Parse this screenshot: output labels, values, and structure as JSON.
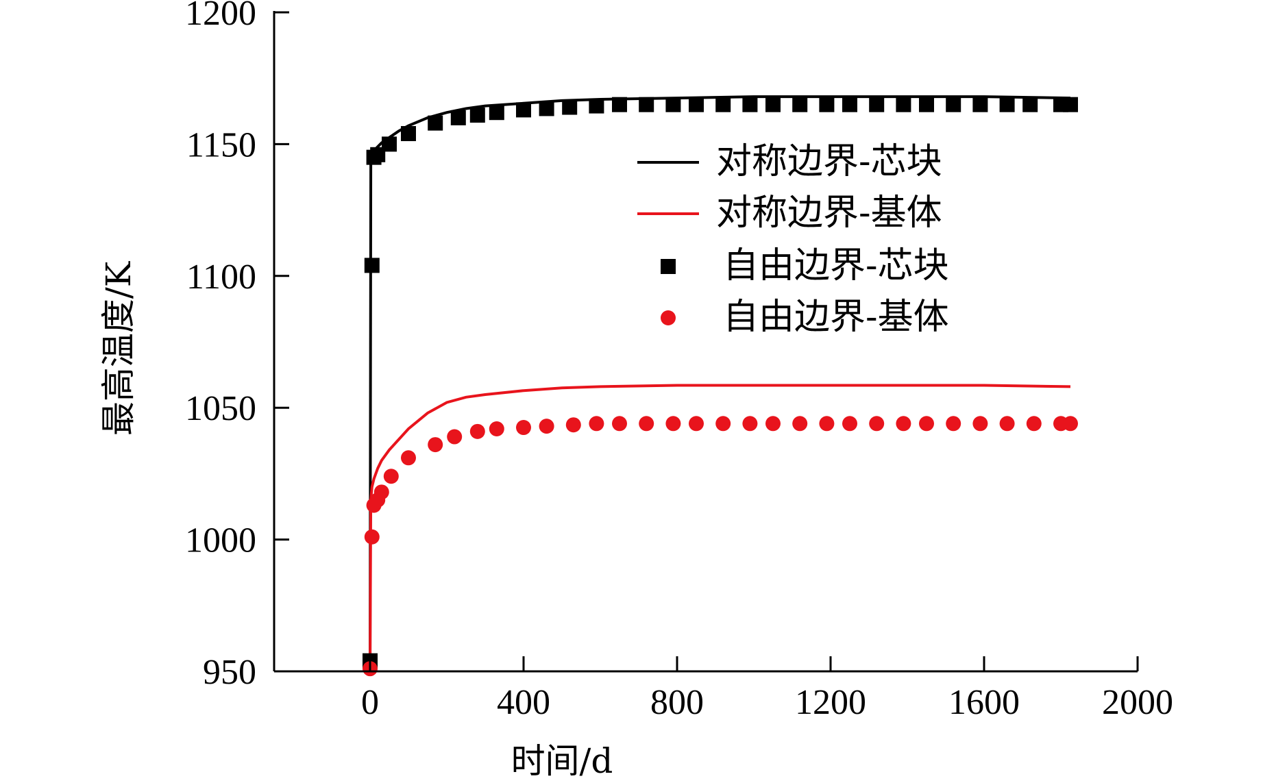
{
  "chart_data": {
    "type": "line",
    "title": "",
    "xlabel": "时间/d",
    "ylabel": "最高温度/K",
    "xlim": [
      -250,
      2000
    ],
    "ylim": [
      950,
      1200
    ],
    "xticks": [
      0,
      400,
      800,
      1200,
      1600,
      2000
    ],
    "yticks": [
      950,
      1000,
      1050,
      1100,
      1150,
      1200
    ],
    "xtick_labels": [
      "0",
      "400",
      "800",
      "1200",
      "1600",
      "2000"
    ],
    "ytick_labels": [
      "950",
      "1000",
      "1050",
      "1100",
      "1150",
      "1200"
    ],
    "grid": false,
    "legend_position": "right, upper-middle",
    "colors": {
      "black": "#000000",
      "red": "#e8141c"
    },
    "series": [
      {
        "name": "对称边界-芯块",
        "style": "line",
        "color": "#000000",
        "x": [
          0,
          2,
          5,
          10,
          20,
          30,
          50,
          75,
          100,
          150,
          200,
          250,
          300,
          400,
          500,
          600,
          800,
          1000,
          1200,
          1400,
          1600,
          1825
        ],
        "y": [
          950,
          1143,
          1146,
          1147.5,
          1149,
          1150.5,
          1152.5,
          1155,
          1157,
          1160,
          1162,
          1163.5,
          1164.5,
          1165.5,
          1166.5,
          1167,
          1167.5,
          1168,
          1168,
          1168,
          1168,
          1167.5
        ]
      },
      {
        "name": "对称边界-基体",
        "style": "line",
        "color": "#e8141c",
        "x": [
          0,
          2,
          5,
          10,
          20,
          30,
          50,
          75,
          100,
          150,
          200,
          250,
          300,
          400,
          500,
          600,
          800,
          1000,
          1200,
          1400,
          1600,
          1825
        ],
        "y": [
          950,
          1015,
          1020,
          1023,
          1027,
          1030,
          1034,
          1038,
          1042,
          1048,
          1052,
          1054,
          1055,
          1056.5,
          1057.5,
          1058,
          1058.5,
          1058.5,
          1058.5,
          1058.5,
          1058.5,
          1058
        ]
      },
      {
        "name": "自由边界-芯块",
        "style": "square",
        "color": "#000000",
        "x": [
          0,
          5,
          10,
          20,
          50,
          100,
          170,
          230,
          280,
          330,
          400,
          460,
          520,
          590,
          650,
          720,
          790,
          850,
          920,
          990,
          1050,
          1120,
          1190,
          1250,
          1320,
          1390,
          1450,
          1520,
          1590,
          1660,
          1720,
          1800,
          1825
        ],
        "y": [
          954,
          1104,
          1145,
          1146,
          1150,
          1154,
          1158,
          1160,
          1161,
          1162,
          1163,
          1163.5,
          1164,
          1164.5,
          1165,
          1165,
          1165,
          1165,
          1165,
          1165,
          1165,
          1165,
          1165,
          1165,
          1165,
          1165,
          1165,
          1165,
          1165,
          1165,
          1165,
          1165,
          1165
        ]
      },
      {
        "name": "自由边界-基体",
        "style": "circle",
        "color": "#e8141c",
        "x": [
          0,
          5,
          10,
          20,
          30,
          55,
          100,
          170,
          220,
          280,
          330,
          400,
          460,
          530,
          590,
          650,
          720,
          790,
          850,
          920,
          990,
          1050,
          1120,
          1190,
          1250,
          1320,
          1390,
          1450,
          1520,
          1590,
          1660,
          1730,
          1800,
          1825
        ],
        "y": [
          951,
          1001,
          1013,
          1015,
          1018,
          1024,
          1031,
          1036,
          1039,
          1041,
          1042,
          1042.5,
          1043,
          1043.5,
          1044,
          1044,
          1044,
          1044,
          1044,
          1044,
          1044,
          1044,
          1044,
          1044,
          1044,
          1044,
          1044,
          1044,
          1044,
          1044,
          1044,
          1044,
          1044,
          1044
        ]
      }
    ]
  }
}
